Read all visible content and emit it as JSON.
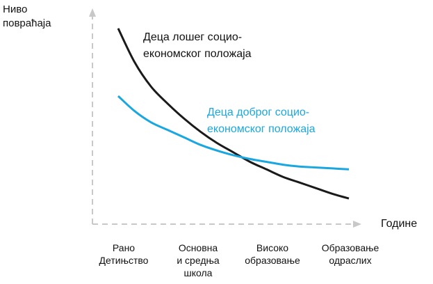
{
  "chart_data": {
    "type": "line",
    "title": "",
    "ylabel": "Ниво\nповраћаја",
    "xlabel": "Године",
    "categories": [
      "Рано\nДетињство",
      "Основна\nи средња\nшкола",
      "Високо\nобразовање",
      "Образовање\nодраслих"
    ],
    "y_ticks_shown": false,
    "grid": false,
    "series": [
      {
        "name": "Деца лошег социо-\nекономског положаја",
        "color": "#1a1a1a",
        "x": [
          0,
          0.25,
          0.5,
          0.75,
          1.0,
          1.25,
          1.5,
          1.75,
          2.0,
          2.25,
          2.5,
          2.75,
          3.0,
          3.25,
          3.5
        ],
        "values": [
          0.96,
          0.78,
          0.65,
          0.56,
          0.48,
          0.41,
          0.35,
          0.3,
          0.25,
          0.21,
          0.17,
          0.14,
          0.11,
          0.08,
          0.055
        ]
      },
      {
        "name": "Деца доброг социо-\nекономског положаја",
        "color": "#1aa7e0",
        "x": [
          0,
          0.25,
          0.5,
          0.75,
          1.0,
          1.25,
          1.5,
          1.75,
          2.0,
          2.25,
          2.5,
          2.75,
          3.0,
          3.25,
          3.5
        ],
        "values": [
          0.6,
          0.52,
          0.46,
          0.42,
          0.38,
          0.34,
          0.31,
          0.285,
          0.265,
          0.25,
          0.235,
          0.225,
          0.22,
          0.215,
          0.21
        ]
      }
    ]
  }
}
